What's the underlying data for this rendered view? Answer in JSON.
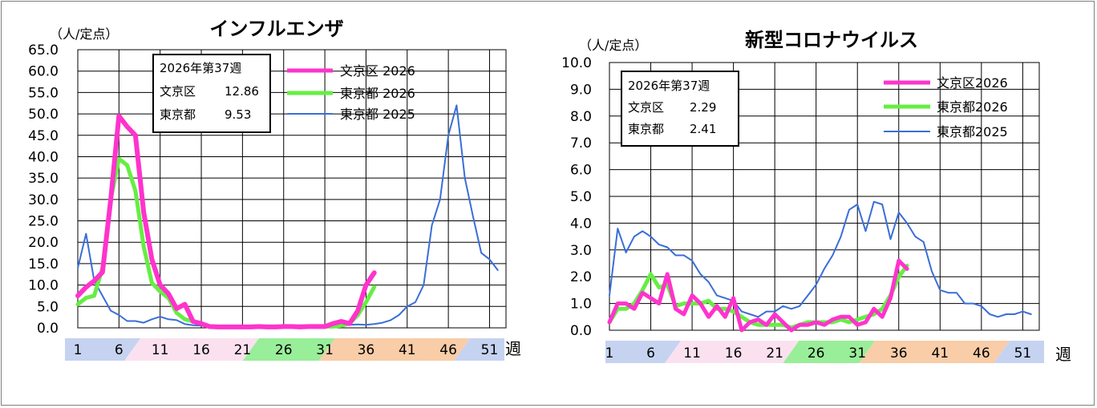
{
  "chart_data": [
    {
      "type": "line",
      "title": "インフルエンザ",
      "unit": "（人/定点）",
      "xlabel": "週",
      "ylim": [
        0,
        65
      ],
      "yticks": [
        0,
        5,
        10,
        15,
        20,
        25,
        30,
        35,
        40,
        45,
        50,
        55,
        60,
        65
      ],
      "ytick_labels": [
        "0.0",
        "5.0",
        "10.0",
        "15.0",
        "20.0",
        "25.0",
        "30.0",
        "35.0",
        "40.0",
        "45.0",
        "50.0",
        "55.0",
        "60.0",
        "65.0"
      ],
      "xlim": [
        1,
        53
      ],
      "xticks": [
        1,
        6,
        11,
        16,
        21,
        26,
        31,
        36,
        41,
        46,
        51
      ],
      "xtick_labels": [
        "1",
        "6",
        "11",
        "16",
        "21",
        "26",
        "31",
        "36",
        "41",
        "46",
        "51"
      ],
      "grid": true,
      "season_bands": [
        {
          "from": 1,
          "to": 9,
          "color": "#c5d3f1"
        },
        {
          "from": 9,
          "to": 23,
          "color": "#fbe1ef"
        },
        {
          "from": 23,
          "to": 32,
          "color": "#99ee99"
        },
        {
          "from": 32,
          "to": 48,
          "color": "#f8cda8"
        },
        {
          "from": 48,
          "to": 53,
          "color": "#c5d3f1"
        }
      ],
      "infobox": {
        "line1": "2026年第37週",
        "line2_label": "文京区",
        "line2_value": "12.86",
        "line3_label": "東京都",
        "line3_value": "9.53"
      },
      "legend_position": "top-right",
      "series": [
        {
          "name": "文京区 2026",
          "color": "#ff33cc",
          "x": [
            1,
            2,
            3,
            4,
            5,
            6,
            7,
            8,
            9,
            10,
            11,
            12,
            13,
            14,
            15,
            16,
            17,
            18,
            19,
            20,
            21,
            22,
            23,
            24,
            25,
            26,
            27,
            28,
            29,
            30,
            31,
            32,
            33,
            34,
            35,
            36,
            37
          ],
          "values": [
            7.5,
            9.5,
            11,
            13,
            30,
            49.5,
            47,
            45,
            27,
            16,
            10,
            8,
            4.5,
            5.5,
            1.5,
            1,
            0.3,
            0.2,
            0.2,
            0.2,
            0.2,
            0.2,
            0.3,
            0.2,
            0.2,
            0.3,
            0.3,
            0.2,
            0.3,
            0.3,
            0.3,
            1,
            1.5,
            1,
            4,
            10,
            12.86
          ]
        },
        {
          "name": "東京都 2026",
          "color": "#66ee44",
          "x": [
            1,
            2,
            3,
            4,
            5,
            6,
            7,
            8,
            9,
            10,
            11,
            12,
            13,
            14,
            15,
            16,
            17,
            18,
            19,
            20,
            21,
            22,
            23,
            24,
            25,
            26,
            27,
            28,
            29,
            30,
            31,
            32,
            33,
            34,
            35,
            36,
            37
          ],
          "values": [
            5.5,
            7,
            7.5,
            14,
            30,
            39.5,
            38,
            32,
            19,
            10.5,
            8.5,
            7,
            3.5,
            2,
            1.5,
            1,
            0.4,
            0.3,
            0.3,
            0.3,
            0.3,
            0.3,
            0.3,
            0.3,
            0.3,
            0.3,
            0.3,
            0.3,
            0.3,
            0.3,
            0.3,
            0.3,
            0.5,
            1,
            3,
            6,
            9.53
          ]
        },
        {
          "name": "東京都 2025",
          "color": "#3a6ed8",
          "x": [
            1,
            2,
            3,
            4,
            5,
            6,
            7,
            8,
            9,
            10,
            11,
            12,
            13,
            14,
            15,
            16,
            17,
            18,
            19,
            20,
            21,
            22,
            23,
            24,
            25,
            26,
            27,
            28,
            29,
            30,
            31,
            32,
            33,
            34,
            35,
            36,
            37,
            38,
            39,
            40,
            41,
            42,
            43,
            44,
            45,
            46,
            47,
            48,
            49,
            50,
            51,
            52
          ],
          "values": [
            14,
            22,
            11,
            7.5,
            4,
            3,
            1.6,
            1.6,
            1.2,
            2,
            2.6,
            2,
            1.8,
            0.9,
            0.6,
            0.5,
            0.5,
            0.5,
            0.5,
            0.5,
            0.5,
            0.4,
            0.4,
            0.4,
            0.4,
            0.5,
            0.5,
            0.6,
            0.6,
            0.6,
            0.6,
            0.6,
            0.6,
            0.7,
            0.8,
            0.7,
            0.9,
            1.2,
            1.8,
            3,
            5,
            6,
            10,
            24,
            30,
            45,
            52,
            35,
            26,
            17.5,
            16,
            13.5
          ]
        }
      ]
    },
    {
      "type": "line",
      "title": "新型コロナウイルス",
      "unit": "（人/定点）",
      "xlabel": "週",
      "ylim": [
        0,
        10
      ],
      "yticks": [
        0,
        1,
        2,
        3,
        4,
        5,
        6,
        7,
        8,
        9,
        10
      ],
      "ytick_labels": [
        "0.0",
        "1.0",
        "2.0",
        "3.0",
        "4.0",
        "5.0",
        "6.0",
        "7.0",
        "8.0",
        "9.0",
        "10.0"
      ],
      "xlim": [
        1,
        53
      ],
      "xticks": [
        1,
        6,
        11,
        16,
        21,
        26,
        31,
        36,
        41,
        46,
        51
      ],
      "xtick_labels": [
        "1",
        "6",
        "11",
        "16",
        "21",
        "26",
        "31",
        "36",
        "41",
        "46",
        "51"
      ],
      "grid": true,
      "season_bands": [
        {
          "from": 1,
          "to": 9,
          "color": "#c5d3f1"
        },
        {
          "from": 9,
          "to": 23,
          "color": "#fbe1ef"
        },
        {
          "from": 23,
          "to": 32,
          "color": "#99ee99"
        },
        {
          "from": 32,
          "to": 48,
          "color": "#f8cda8"
        },
        {
          "from": 48,
          "to": 53,
          "color": "#c5d3f1"
        }
      ],
      "infobox": {
        "line1": "2026年第37週",
        "line2_label": "文京区",
        "line2_value": "2.29",
        "line3_label": "東京都",
        "line3_value": "2.41"
      },
      "legend_position": "top-right",
      "series": [
        {
          "name": "文京区2026",
          "color": "#ff33cc",
          "x": [
            1,
            2,
            3,
            4,
            5,
            6,
            7,
            8,
            9,
            10,
            11,
            12,
            13,
            14,
            15,
            16,
            17,
            18,
            19,
            20,
            21,
            22,
            23,
            24,
            25,
            26,
            27,
            28,
            29,
            30,
            31,
            32,
            33,
            34,
            35,
            36,
            37
          ],
          "values": [
            0.3,
            1,
            1,
            0.8,
            1.4,
            1.2,
            1,
            2.1,
            0.8,
            0.6,
            1.3,
            1,
            0.5,
            0.9,
            0.5,
            1.2,
            0,
            0.3,
            0.4,
            0.2,
            0.6,
            0.3,
            0,
            0.2,
            0.2,
            0.3,
            0.2,
            0.4,
            0.5,
            0.5,
            0.2,
            0.3,
            0.8,
            0.5,
            1.2,
            2.6,
            2.29
          ]
        },
        {
          "name": "東京都2026",
          "color": "#66ee44",
          "x": [
            1,
            2,
            3,
            4,
            5,
            6,
            7,
            8,
            9,
            10,
            11,
            12,
            13,
            14,
            15,
            16,
            17,
            18,
            19,
            20,
            21,
            22,
            23,
            24,
            25,
            26,
            27,
            28,
            29,
            30,
            31,
            32,
            33,
            34,
            35,
            36,
            37
          ],
          "values": [
            0.3,
            0.8,
            0.8,
            1,
            1.5,
            2.1,
            1.6,
            1.7,
            0.9,
            1,
            1,
            1,
            1.1,
            0.8,
            0.8,
            0.7,
            0.5,
            0.3,
            0.2,
            0.2,
            0.2,
            0.2,
            0.1,
            0.2,
            0.3,
            0.3,
            0.3,
            0.3,
            0.4,
            0.3,
            0.4,
            0.5,
            0.6,
            0.8,
            1.3,
            2,
            2.41
          ]
        },
        {
          "name": "東京都2025",
          "color": "#3a6ed8",
          "x": [
            1,
            2,
            3,
            4,
            5,
            6,
            7,
            8,
            9,
            10,
            11,
            12,
            13,
            14,
            15,
            16,
            17,
            18,
            19,
            20,
            21,
            22,
            23,
            24,
            25,
            26,
            27,
            28,
            29,
            30,
            31,
            32,
            33,
            34,
            35,
            36,
            37,
            38,
            39,
            40,
            41,
            42,
            43,
            44,
            45,
            46,
            47,
            48,
            49,
            50,
            51,
            52
          ],
          "values": [
            1.3,
            3.8,
            2.9,
            3.5,
            3.7,
            3.5,
            3.2,
            3.1,
            2.8,
            2.8,
            2.6,
            2.1,
            1.8,
            1.3,
            1.2,
            1.1,
            0.7,
            0.6,
            0.5,
            0.7,
            0.7,
            0.9,
            0.8,
            0.9,
            1.3,
            1.7,
            2.3,
            2.8,
            3.5,
            4.5,
            4.7,
            3.7,
            4.8,
            4.7,
            3.4,
            4.4,
            4,
            3.5,
            3.3,
            2.2,
            1.5,
            1.4,
            1.4,
            1,
            1,
            0.9,
            0.6,
            0.5,
            0.6,
            0.6,
            0.7,
            0.6
          ]
        }
      ]
    }
  ]
}
